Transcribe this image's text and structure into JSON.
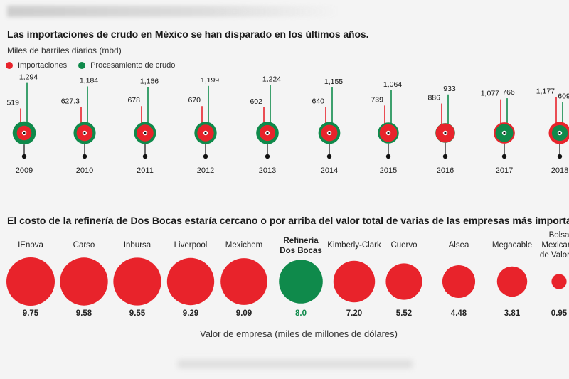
{
  "colors": {
    "imports": "#e8232b",
    "processing": "#0f8a4b",
    "text": "#1a1a1a"
  },
  "chart1": {
    "title": "Las importaciones de crudo en México se han disparado en los últimos años.",
    "subtitle": "Miles de barriles diarios (mbd)",
    "legend": [
      {
        "label": "Importaciones",
        "color": "#e8232b"
      },
      {
        "label": "Procesamiento de crudo",
        "color": "#0f8a4b"
      }
    ]
  },
  "chart2": {
    "title": "El costo de la refinería de Dos Bocas estaría cercano o por arriba del valor total de varias de las empresas más importantes del país",
    "xlabel": "Valor de empresa (miles de millones de dólares)"
  },
  "chart_data": [
    {
      "type": "scatter",
      "title": "Las importaciones de crudo en México se han disparado en los últimos años.",
      "ylabel": "Miles de barriles diarios (mbd)",
      "x": [
        "2009",
        "2010",
        "2011",
        "2012",
        "2013",
        "2014",
        "2015",
        "2016",
        "2017",
        "2018"
      ],
      "series": [
        {
          "name": "Importaciones",
          "values": [
            519,
            627.3,
            678,
            670,
            602,
            640,
            739,
            886,
            1077,
            1177
          ],
          "labels": [
            "519",
            "627.3",
            "678",
            "670",
            "602",
            "640",
            "739",
            "886",
            "1,077",
            "1,177"
          ]
        },
        {
          "name": "Procesamiento de crudo",
          "values": [
            1294,
            1184,
            1166,
            1199,
            1224,
            1155,
            1064,
            933,
            766,
            609
          ],
          "labels": [
            "1,294",
            "1,184",
            "1,166",
            "1,199",
            "1,224",
            "1,155",
            "1,064",
            "933",
            "766",
            "609"
          ]
        }
      ]
    },
    {
      "type": "scatter",
      "title": "El costo de la refinería de Dos Bocas estaría cercano o por arriba del valor total de varias de las empresas más importantes del país",
      "xlabel": "Valor de empresa (miles de millones de dólares)",
      "categories": [
        "IEnova",
        "Carso",
        "Inbursa",
        "Liverpool",
        "Mexichem",
        "Refinería Dos Bocas",
        "Kimberly-Clark",
        "Cuervo",
        "Alsea",
        "Megacable",
        "Bolsa Mexicana de Valores"
      ],
      "values": [
        9.75,
        9.58,
        9.55,
        9.29,
        9.09,
        8.0,
        7.2,
        5.52,
        4.48,
        3.81,
        0.95
      ],
      "value_labels": [
        "9.75",
        "9.58",
        "9.55",
        "9.29",
        "9.09",
        "8.0",
        "7.20",
        "5.52",
        "4.48",
        "3.81",
        "0.95"
      ],
      "highlight": "Refinería Dos Bocas",
      "label_lines": [
        [
          "IEnova"
        ],
        [
          "Carso"
        ],
        [
          "Inbursa"
        ],
        [
          "Liverpool"
        ],
        [
          "Mexichem"
        ],
        [
          "Refinería",
          "Dos Bocas"
        ],
        [
          "Kimberly-Clark"
        ],
        [
          "Cuervo"
        ],
        [
          "Alsea"
        ],
        [
          "Megacable"
        ],
        [
          "Bolsa",
          "Mexicana",
          "de Valores"
        ]
      ]
    }
  ]
}
